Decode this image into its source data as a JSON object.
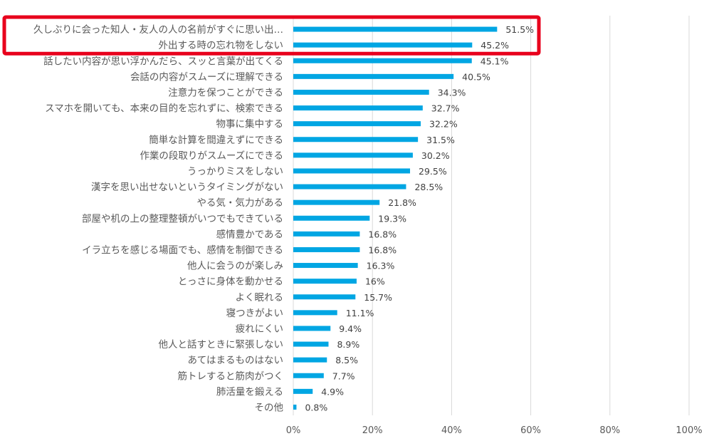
{
  "chart_data": {
    "type": "bar",
    "orientation": "horizontal",
    "categories": [
      "久しぶりに会った知人・友人の人の名前がすぐに思い出…",
      "外出する時の忘れ物をしない",
      "話したい内容が思い浮かんだら、スッと言葉が出てくる",
      "会話の内容がスムーズに理解できる",
      "注意力を保つことができる",
      "スマホを開いても、本来の目的を忘れずに、検索できる",
      "物事に集中する",
      "簡単な計算を間違えずにできる",
      "作業の段取りがスムーズにできる",
      "うっかりミスをしない",
      "漢字を思い出せないというタイミングがない",
      "やる気・気力がある",
      "部屋や机の上の整理整頓がいつでもできている",
      "感情豊かである",
      "イラ立ちを感じる場面でも、感情を制御できる",
      "他人に会うのが楽しみ",
      "とっさに身体を動かせる",
      "よく眠れる",
      "寝つきがよい",
      "疲れにくい",
      "他人と話すときに緊張しない",
      "あてはまるものはない",
      "筋トレすると筋肉がつく",
      "肺活量を鍛える",
      "その他"
    ],
    "values": [
      51.5,
      45.2,
      45.1,
      40.5,
      34.3,
      32.7,
      32.2,
      31.5,
      30.2,
      29.5,
      28.5,
      21.8,
      19.3,
      16.8,
      16.8,
      16.3,
      16,
      15.7,
      11.1,
      9.4,
      8.9,
      8.5,
      7.7,
      4.9,
      0.8
    ],
    "value_labels": [
      "51.5%",
      "45.2%",
      "45.1%",
      "40.5%",
      "34.3%",
      "32.7%",
      "32.2%",
      "31.5%",
      "30.2%",
      "29.5%",
      "28.5%",
      "21.8%",
      "19.3%",
      "16.8%",
      "16.8%",
      "16.3%",
      "16%",
      "15.7%",
      "11.1%",
      "9.4%",
      "8.9%",
      "8.5%",
      "7.7%",
      "4.9%",
      "0.8%"
    ],
    "xlim": [
      0,
      100
    ],
    "xticks": [
      "0%",
      "20%",
      "40%",
      "60%",
      "80%",
      "100%"
    ],
    "grid": true,
    "bar_color": "#00a6e3",
    "highlight_color": "#e8001c",
    "highlight_rows": [
      0,
      1
    ]
  }
}
